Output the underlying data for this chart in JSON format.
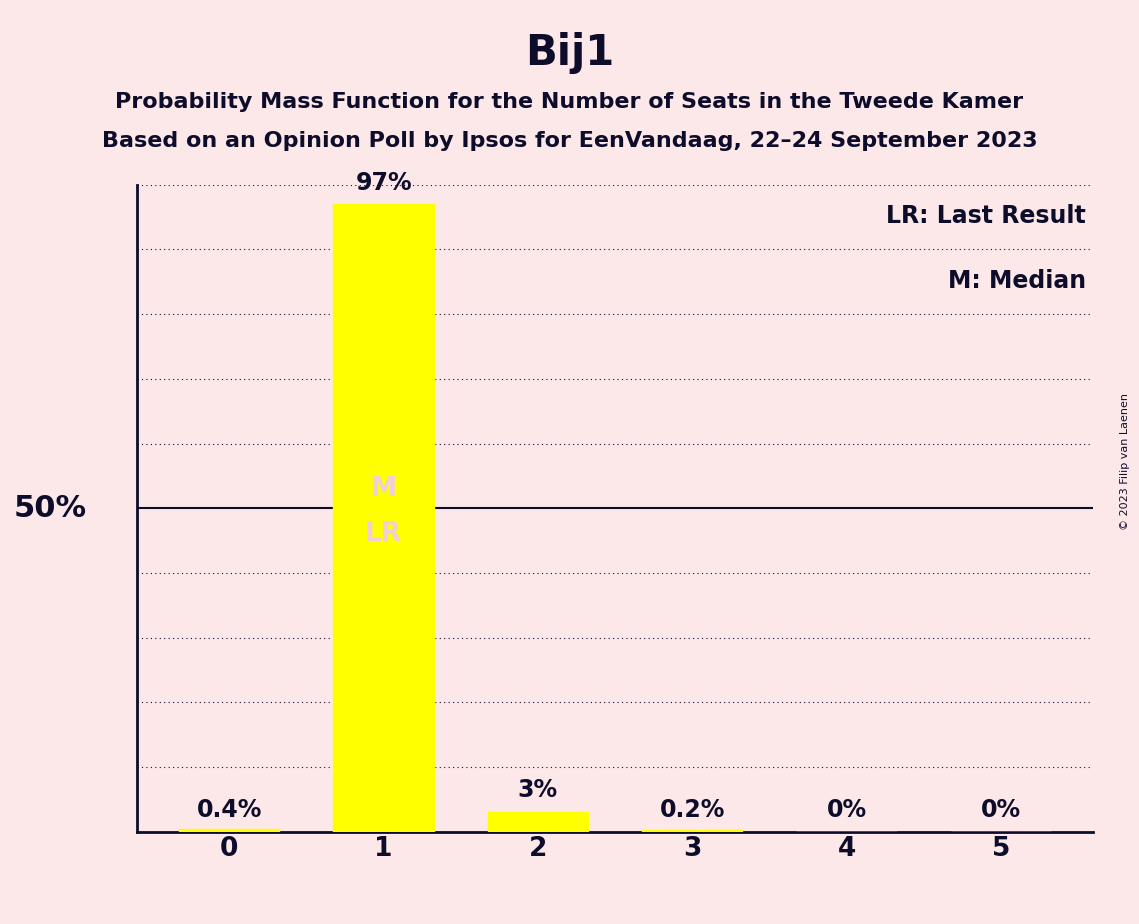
{
  "title": "Bij1",
  "subtitle1": "Probability Mass Function for the Number of Seats in the Tweede Kamer",
  "subtitle2": "Based on an Opinion Poll by Ipsos for EenVandaag, 22–24 September 2023",
  "copyright": "© 2023 Filip van Laenen",
  "categories": [
    0,
    1,
    2,
    3,
    4,
    5
  ],
  "values": [
    0.4,
    97.0,
    3.0,
    0.2,
    0.0,
    0.0
  ],
  "bar_color": "#ffff00",
  "background_color": "#fce8e8",
  "bar_labels": [
    "0.4%",
    "97%",
    "3%",
    "0.2%",
    "0%",
    "0%"
  ],
  "median_seat": 1,
  "last_result_seat": 1,
  "legend_lr": "LR: Last Result",
  "legend_m": "M: Median",
  "ylabel_50": "50%",
  "ylim": [
    0,
    100
  ],
  "yticks": [
    0,
    10,
    20,
    30,
    40,
    50,
    60,
    70,
    80,
    90,
    100
  ],
  "solid_ytick": 50,
  "title_fontsize": 30,
  "subtitle_fontsize": 16,
  "axis_fontsize": 19,
  "bar_label_fontsize": 17,
  "ylabel_fontsize": 22,
  "legend_fontsize": 17,
  "inside_label_fontsize": 19,
  "inside_label_color": "#f0d0d8",
  "text_color": "#0d0d2b"
}
